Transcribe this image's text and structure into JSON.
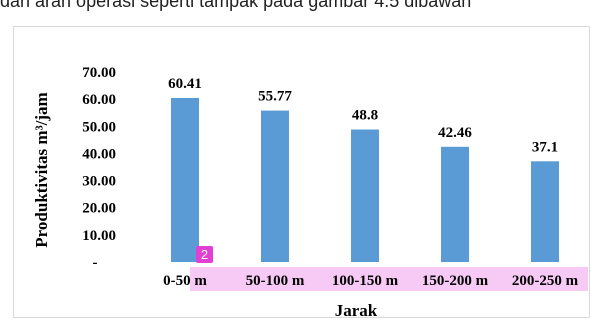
{
  "page": {
    "top_text": "dan arah operasi seperti tampak pada gambar 4.5 dibawah"
  },
  "marker": {
    "badge_text": "2",
    "highlight_color": "#f7c9f5",
    "badge_color": "#e23fd4"
  },
  "chart_data": {
    "type": "bar",
    "title": "",
    "xlabel": "Jarak",
    "ylabel": "Produktivitas m³/jam",
    "categories": [
      "0-50 m",
      "50-100 m",
      "100-150 m",
      "150-200 m",
      "200-250 m"
    ],
    "values": [
      60.41,
      55.77,
      48.8,
      42.46,
      37.1
    ],
    "value_labels": [
      "60.41",
      "55.77",
      "48.8",
      "42.46",
      "37.1"
    ],
    "yticks": [
      0,
      10,
      20,
      30,
      40,
      50,
      60,
      70
    ],
    "ytick_labels": [
      "-",
      "10.00",
      "20.00",
      "30.00",
      "40.00",
      "50.00",
      "60.00",
      "70.00"
    ],
    "ylim": [
      0,
      70
    ],
    "bar_color": "#5b9bd5",
    "grid": false,
    "legend": "none"
  }
}
